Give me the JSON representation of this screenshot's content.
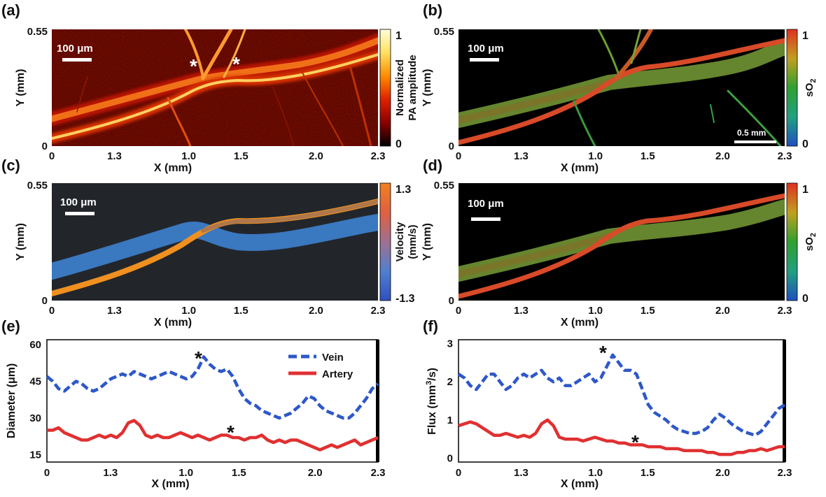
{
  "chart_data": [
    {
      "panel": "(a)",
      "type": "heatmap",
      "x_ticks": [
        "0",
        "1.3",
        "1.0",
        "1.5",
        "2.0",
        "2.3"
      ],
      "y_ticks": [
        "0",
        "0.55"
      ],
      "xlabel": "X (mm)",
      "ylabel": "Y (mm)",
      "scale_bar": "100 μm",
      "colorbar": {
        "label_lines": [
          "Normalized",
          "PA amplitude"
        ],
        "ticks": [
          "0",
          "1"
        ],
        "colors": [
          "#000000",
          "#8a0000",
          "#e02000",
          "#ff8c00",
          "#ffe060",
          "#ffffd8"
        ]
      },
      "annotations": [
        "*",
        "*"
      ]
    },
    {
      "panel": "(b)",
      "type": "heatmap",
      "x_ticks": [
        "0",
        "1.3",
        "1.0",
        "1.5",
        "2.0",
        "2.3"
      ],
      "y_ticks": [
        "0",
        "0.55"
      ],
      "xlabel": "X (mm)",
      "ylabel": "Y (mm)",
      "scale_bar": "100 μm",
      "scale_bar_2": "0.5 mm",
      "colorbar": {
        "label": "sO",
        "label_sub": "2",
        "ticks": [
          "0",
          "1"
        ],
        "colors": [
          "#2050c0",
          "#20a080",
          "#30a030",
          "#c0a020",
          "#e03020"
        ]
      }
    },
    {
      "panel": "(c)",
      "type": "heatmap",
      "x_ticks": [
        "0",
        "1.3",
        "1.0",
        "1.5",
        "2.0",
        "2.3"
      ],
      "y_ticks": [
        "0",
        "0.55"
      ],
      "xlabel": "X (mm)",
      "ylabel": "Y (mm)",
      "scale_bar": "100 μm",
      "colorbar": {
        "label_lines": [
          "Velocity",
          "(mm/s)"
        ],
        "ticks": [
          "-1.3",
          "1.3"
        ],
        "colors": [
          "#3050c0",
          "#5080d0",
          "#a07090",
          "#e06040",
          "#f08020"
        ]
      }
    },
    {
      "panel": "(d)",
      "type": "heatmap",
      "x_ticks": [
        "0",
        "1.3",
        "1.0",
        "1.5",
        "2.0",
        "2.3"
      ],
      "y_ticks": [
        "0",
        "0.55"
      ],
      "xlabel": "X (mm)",
      "ylabel": "Y (mm)",
      "scale_bar": "100 μm",
      "colorbar": {
        "label": "sO",
        "label_sub": "2",
        "ticks": [
          "0",
          "1"
        ],
        "colors": [
          "#2050c0",
          "#20a080",
          "#30a030",
          "#c0a020",
          "#e03020"
        ]
      }
    },
    {
      "panel": "(e)",
      "type": "line",
      "x_ticks": [
        "0",
        "1.3",
        "1.0",
        "1.5",
        "2.0",
        "2.3"
      ],
      "y_ticks": [
        "15",
        "30",
        "45",
        "60"
      ],
      "xlabel": "X (mm)",
      "ylabel": "Diameter (μm)",
      "ylim": [
        12,
        62
      ],
      "legend_position": "top-right",
      "series": [
        {
          "name": "Vein",
          "color": "#2e58c8",
          "style": "dashed",
          "values": [
            47,
            45,
            42,
            41,
            43,
            45,
            44,
            42,
            41,
            42,
            44,
            46,
            47,
            48,
            47,
            49,
            48,
            47,
            46,
            47,
            48,
            49,
            48,
            47,
            46,
            47,
            50,
            55,
            52,
            50,
            49,
            50,
            47,
            42,
            38,
            36,
            35,
            33,
            32,
            31,
            30,
            31,
            32,
            34,
            36,
            39,
            38,
            35,
            33,
            32,
            31,
            30,
            30,
            32,
            35,
            38,
            42,
            44
          ]
        },
        {
          "name": "Artery",
          "color": "#e03030",
          "style": "solid",
          "values": [
            25,
            25,
            26,
            24,
            23,
            22,
            21,
            21,
            22,
            23,
            22,
            23,
            22,
            24,
            28,
            29,
            27,
            23,
            22,
            23,
            22,
            22,
            23,
            24,
            23,
            22,
            23,
            22,
            21,
            22,
            23,
            23,
            22,
            22,
            21,
            22,
            22,
            23,
            21,
            20,
            21,
            20,
            21,
            21,
            20,
            19,
            18,
            17,
            18,
            19,
            18,
            19,
            20,
            21,
            19,
            20,
            21,
            22
          ]
        }
      ],
      "annotations": [
        "*",
        "*"
      ]
    },
    {
      "panel": "(f)",
      "type": "line",
      "x_ticks": [
        "0",
        "1.3",
        "1.0",
        "1.5",
        "2.0",
        "2.3"
      ],
      "y_ticks": [
        "0",
        "1",
        "2",
        "3"
      ],
      "xlabel": "X (mm)",
      "ylabel_main": "Flux (mm",
      "ylabel_sup": "3",
      "ylabel_tail": "/s)",
      "ylim": [
        -0.1,
        3.1
      ],
      "series": [
        {
          "name": "Vein",
          "color": "#2e58c8",
          "style": "dashed",
          "values": [
            2.2,
            2.1,
            1.9,
            1.8,
            2.0,
            2.2,
            2.2,
            2.0,
            1.8,
            1.9,
            2.1,
            2.2,
            2.1,
            2.2,
            2.3,
            2.1,
            2.0,
            2.1,
            1.9,
            1.9,
            2.0,
            2.1,
            2.2,
            2.0,
            2.1,
            2.4,
            2.7,
            2.5,
            2.3,
            2.3,
            2.2,
            1.8,
            1.4,
            1.2,
            1.1,
            1.0,
            0.85,
            0.75,
            0.7,
            0.65,
            0.65,
            0.7,
            0.8,
            1.0,
            1.15,
            1.05,
            0.9,
            0.8,
            0.7,
            0.65,
            0.6,
            0.7,
            0.9,
            1.1,
            1.3,
            1.4
          ]
        },
        {
          "name": "Artery",
          "color": "#e03030",
          "style": "solid",
          "values": [
            0.85,
            0.9,
            0.95,
            0.9,
            0.8,
            0.7,
            0.6,
            0.6,
            0.65,
            0.6,
            0.55,
            0.6,
            0.55,
            0.65,
            0.9,
            1.0,
            0.85,
            0.55,
            0.5,
            0.5,
            0.5,
            0.45,
            0.5,
            0.55,
            0.5,
            0.45,
            0.45,
            0.4,
            0.4,
            0.35,
            0.35,
            0.35,
            0.3,
            0.3,
            0.3,
            0.25,
            0.25,
            0.25,
            0.2,
            0.2,
            0.2,
            0.2,
            0.15,
            0.15,
            0.1,
            0.1,
            0.1,
            0.15,
            0.15,
            0.2,
            0.2,
            0.25,
            0.2,
            0.25,
            0.3,
            0.3
          ]
        }
      ],
      "annotations": [
        "*",
        "*"
      ]
    }
  ]
}
